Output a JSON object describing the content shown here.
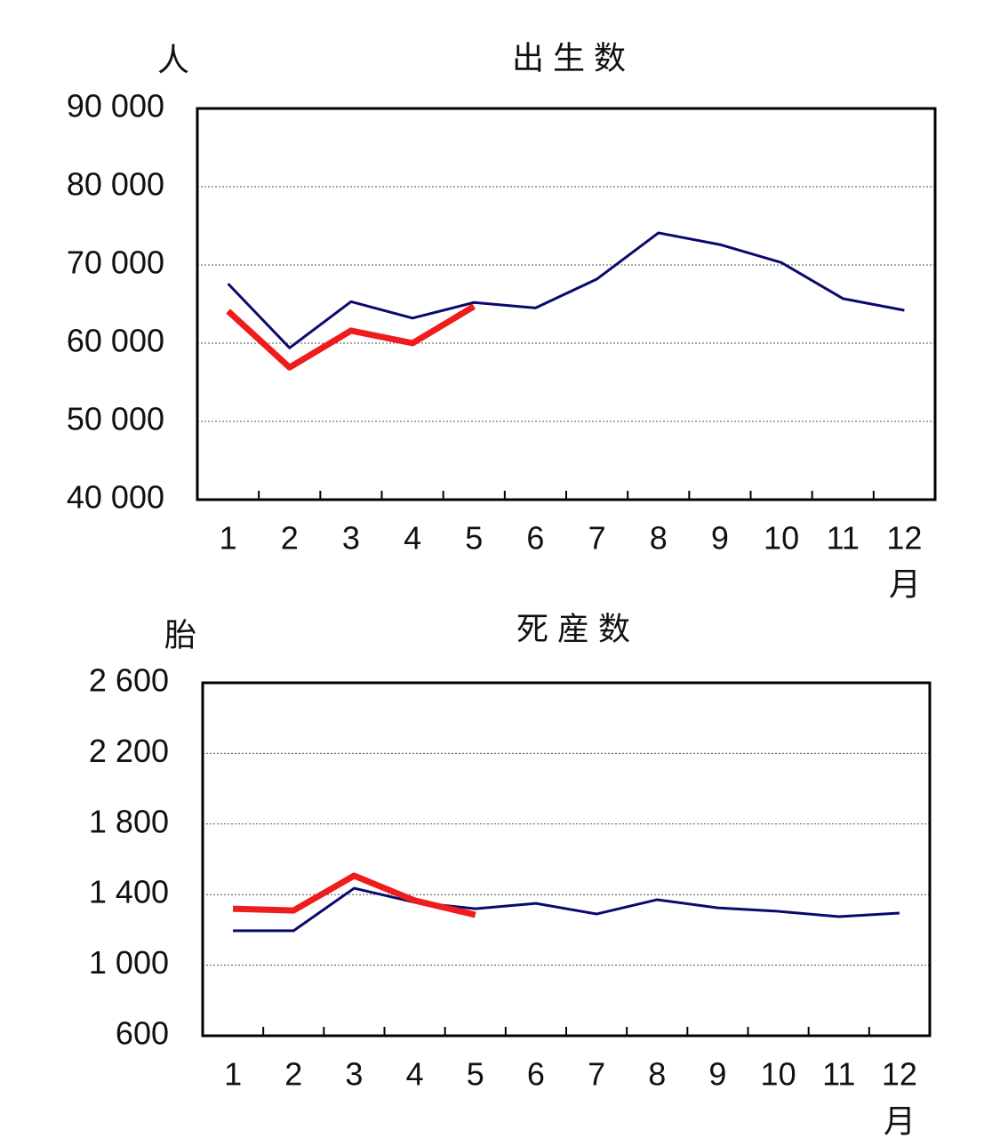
{
  "chart_data": [
    {
      "type": "line",
      "title": "出 生 数",
      "y_unit": "人",
      "x_unit": "月",
      "categories": [
        "1",
        "2",
        "3",
        "4",
        "5",
        "6",
        "7",
        "8",
        "9",
        "10",
        "11",
        "12"
      ],
      "series": [
        {
          "color": "#0a0a6e",
          "width": 3,
          "values": [
            67600,
            59400,
            65300,
            63200,
            65200,
            64500,
            68200,
            74100,
            72600,
            70300,
            65700,
            64200
          ]
        },
        {
          "color": "#ee1c1c",
          "width": 7,
          "values": [
            64100,
            56900,
            61600,
            60000,
            64700,
            null,
            null,
            null,
            null,
            null,
            null,
            null
          ]
        }
      ],
      "ylim": [
        40000,
        90000
      ],
      "yticks": [
        {
          "value": 40000,
          "label": "40 000"
        },
        {
          "value": 50000,
          "label": "50 000"
        },
        {
          "value": 60000,
          "label": "60 000"
        },
        {
          "value": 70000,
          "label": "70 000"
        },
        {
          "value": 80000,
          "label": "80 000"
        },
        {
          "value": 90000,
          "label": "90 000"
        }
      ],
      "grid": true
    },
    {
      "type": "line",
      "title": "死 産 数",
      "y_unit": "胎",
      "x_unit": "月",
      "categories": [
        "1",
        "2",
        "3",
        "4",
        "5",
        "6",
        "7",
        "8",
        "9",
        "10",
        "11",
        "12"
      ],
      "series": [
        {
          "color": "#0a0a6e",
          "width": 3,
          "values": [
            1195,
            1195,
            1436,
            1356,
            1320,
            1350,
            1290,
            1371,
            1325,
            1305,
            1275,
            1295
          ]
        },
        {
          "color": "#ee1c1c",
          "width": 7,
          "values": [
            1320,
            1310,
            1507,
            1366,
            1285,
            null,
            null,
            null,
            null,
            null,
            null,
            null
          ]
        }
      ],
      "ylim": [
        600,
        2600
      ],
      "yticks": [
        600,
        {
          "value": 1000,
          "label": "1 000"
        },
        {
          "value": 1400,
          "label": "1 400"
        },
        {
          "value": 1800,
          "label": "1 800"
        },
        {
          "value": 2200,
          "label": "2 200"
        },
        {
          "value": 2600,
          "label": "2 600"
        }
      ],
      "grid": true
    }
  ]
}
